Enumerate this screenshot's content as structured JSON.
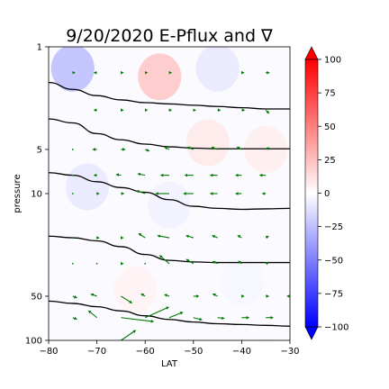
{
  "chart_data": {
    "type": "contour-quiver",
    "title": "9/20/2020 E-Pflux and ∇",
    "xlabel": "LAT",
    "ylabel": "pressure",
    "xlim": [
      -80,
      -30
    ],
    "ylim": [
      100,
      1
    ],
    "y_scale": "log",
    "x_ticks": [
      -80,
      -70,
      -60,
      -50,
      -40,
      -30
    ],
    "x_tick_labels": [
      "−80",
      "−70",
      "−60",
      "−50",
      "−40",
      "−30"
    ],
    "y_ticks": [
      1,
      5,
      10,
      50,
      100
    ],
    "y_tick_labels": [
      "1",
      "5",
      "10",
      "50",
      "100"
    ],
    "colorbar": {
      "colormap": "bwr",
      "range": [
        -100,
        100
      ],
      "ticks": [
        100,
        75,
        50,
        25,
        0,
        -25,
        -50,
        -75,
        -100
      ],
      "tick_labels": [
        "100",
        "75",
        "50",
        "25",
        "0",
        "−25",
        "−50",
        "−75",
        "−100"
      ],
      "extend": "both"
    },
    "shading_blobs": [
      {
        "lat": -75,
        "p": 1.4,
        "value": -30
      },
      {
        "lat": -57,
        "p": 1.6,
        "value": 25
      },
      {
        "lat": -45,
        "p": 1.4,
        "value": -10
      },
      {
        "lat": -47,
        "p": 4.5,
        "value": 10
      },
      {
        "lat": -35,
        "p": 5,
        "value": 8
      },
      {
        "lat": -72,
        "p": 9,
        "value": -10
      },
      {
        "lat": -55,
        "p": 12,
        "value": -6
      },
      {
        "lat": -62,
        "p": 45,
        "value": 5
      },
      {
        "lat": -40,
        "p": 40,
        "value": -4
      }
    ],
    "contour_lines": [
      {
        "points": [
          [
            -80,
            1.75
          ],
          [
            -75,
            1.95
          ],
          [
            -70,
            2.15
          ],
          [
            -65,
            2.3
          ],
          [
            -60,
            2.4
          ],
          [
            -55,
            2.45
          ],
          [
            -50,
            2.5
          ],
          [
            -45,
            2.55
          ],
          [
            -40,
            2.6
          ],
          [
            -35,
            2.65
          ],
          [
            -30,
            2.65
          ]
        ]
      },
      {
        "points": [
          [
            -80,
            3.1
          ],
          [
            -75,
            3.3
          ],
          [
            -70,
            3.9
          ],
          [
            -65,
            4.3
          ],
          [
            -60,
            4.6
          ],
          [
            -55,
            4.8
          ],
          [
            -50,
            4.9
          ],
          [
            -45,
            4.95
          ],
          [
            -40,
            4.95
          ],
          [
            -35,
            4.95
          ],
          [
            -30,
            4.95
          ]
        ]
      },
      {
        "points": [
          [
            -80,
            7.2
          ],
          [
            -75,
            7.5
          ],
          [
            -70,
            8.3
          ],
          [
            -65,
            9.1
          ],
          [
            -60,
            9.8
          ],
          [
            -55,
            11
          ],
          [
            -50,
            12.2
          ],
          [
            -45,
            12.6
          ],
          [
            -40,
            12.8
          ],
          [
            -35,
            12.7
          ],
          [
            -30,
            12.6
          ]
        ]
      },
      {
        "points": [
          [
            -80,
            19.5
          ],
          [
            -75,
            20
          ],
          [
            -70,
            21
          ],
          [
            -65,
            23
          ],
          [
            -60,
            26
          ],
          [
            -55,
            28.5
          ],
          [
            -50,
            29.2
          ],
          [
            -45,
            29.5
          ],
          [
            -40,
            29.5
          ],
          [
            -35,
            29.5
          ],
          [
            -30,
            29.5
          ]
        ]
      },
      {
        "points": [
          [
            -80,
            54
          ],
          [
            -75,
            56
          ],
          [
            -70,
            59
          ],
          [
            -65,
            63
          ],
          [
            -60,
            68
          ],
          [
            -55,
            72
          ],
          [
            -50,
            75
          ],
          [
            -45,
            77
          ],
          [
            -40,
            78
          ],
          [
            -35,
            79
          ],
          [
            -30,
            80
          ]
        ]
      }
    ],
    "quiver": [
      {
        "lat": -75,
        "p": 1.5,
        "u": 0.2,
        "v": 0
      },
      {
        "lat": -70,
        "p": 1.5,
        "u": -0.3,
        "v": 0
      },
      {
        "lat": -65,
        "p": 1.5,
        "u": 0.2,
        "v": 0
      },
      {
        "lat": -60,
        "p": 1.5,
        "u": 0.2,
        "v": 0
      },
      {
        "lat": -55,
        "p": 1.5,
        "u": 0.2,
        "v": 0
      },
      {
        "lat": -40,
        "p": 1.5,
        "u": 0.2,
        "v": 0
      },
      {
        "lat": -35,
        "p": 1.5,
        "u": 0.4,
        "v": 0
      },
      {
        "lat": -30,
        "p": 1.5,
        "u": 0.3,
        "v": 0
      },
      {
        "lat": -70,
        "p": 2.7,
        "u": -0.3,
        "v": 0
      },
      {
        "lat": -65,
        "p": 2.7,
        "u": 0.2,
        "v": 0
      },
      {
        "lat": -60,
        "p": 2.7,
        "u": 0.2,
        "v": 0
      },
      {
        "lat": -55,
        "p": 2.7,
        "u": 0.2,
        "v": 0
      },
      {
        "lat": -50,
        "p": 2.7,
        "u": 0.2,
        "v": 0
      },
      {
        "lat": -45,
        "p": 2.7,
        "u": 0.3,
        "v": 0
      },
      {
        "lat": -40,
        "p": 2.7,
        "u": 0.3,
        "v": 0
      },
      {
        "lat": -35,
        "p": 2.7,
        "u": 0.4,
        "v": -0.4
      },
      {
        "lat": -30,
        "p": 2.7,
        "u": 0.6,
        "v": 0
      },
      {
        "lat": -75,
        "p": 5,
        "u": 0.1,
        "v": 0
      },
      {
        "lat": -70,
        "p": 5,
        "u": -0.5,
        "v": 0
      },
      {
        "lat": -65,
        "p": 5,
        "u": 0.5,
        "v": 0
      },
      {
        "lat": -60,
        "p": 5,
        "u": 0.5,
        "v": -0.2
      },
      {
        "lat": -55,
        "p": 5,
        "u": -0.6,
        "v": 0.3
      },
      {
        "lat": -50,
        "p": 5,
        "u": -0.8,
        "v": 0.3
      },
      {
        "lat": -45,
        "p": 5,
        "u": -0.8,
        "v": 0.3
      },
      {
        "lat": -40,
        "p": 5,
        "u": -0.6,
        "v": 0.3
      },
      {
        "lat": -35,
        "p": 5,
        "u": 0.4,
        "v": 0.2
      },
      {
        "lat": -30,
        "p": 5,
        "u": 1.0,
        "v": 0
      },
      {
        "lat": -75,
        "p": 7.5,
        "u": 0.1,
        "v": 0
      },
      {
        "lat": -70,
        "p": 7.5,
        "u": -0.3,
        "v": 0
      },
      {
        "lat": -65,
        "p": 7.5,
        "u": -0.6,
        "v": 0.1
      },
      {
        "lat": -60,
        "p": 7.5,
        "u": -1.0,
        "v": 0.2
      },
      {
        "lat": -55,
        "p": 7.5,
        "u": -1.2,
        "v": 0
      },
      {
        "lat": -50,
        "p": 7.5,
        "u": -1.2,
        "v": 0
      },
      {
        "lat": -45,
        "p": 7.5,
        "u": -1.0,
        "v": 0
      },
      {
        "lat": -40,
        "p": 7.5,
        "u": -0.8,
        "v": 0
      },
      {
        "lat": -35,
        "p": 7.5,
        "u": -0.8,
        "v": 0
      },
      {
        "lat": -30,
        "p": 7.5,
        "u": 1.0,
        "v": 0
      },
      {
        "lat": -75,
        "p": 10,
        "u": 0.1,
        "v": 0
      },
      {
        "lat": -70,
        "p": 10,
        "u": 0.2,
        "v": 0
      },
      {
        "lat": -65,
        "p": 10,
        "u": 0.3,
        "v": 0
      },
      {
        "lat": -60,
        "p": 10,
        "u": -1.2,
        "v": 0.4
      },
      {
        "lat": -55,
        "p": 10,
        "u": -2.0,
        "v": 0
      },
      {
        "lat": -50,
        "p": 10,
        "u": -1.4,
        "v": 0
      },
      {
        "lat": -45,
        "p": 10,
        "u": -1.0,
        "v": 0
      },
      {
        "lat": -40,
        "p": 10,
        "u": -0.8,
        "v": 0
      },
      {
        "lat": -35,
        "p": 10,
        "u": -0.4,
        "v": 0
      },
      {
        "lat": -30,
        "p": 10,
        "u": 1.0,
        "v": 0
      },
      {
        "lat": -75,
        "p": 20,
        "u": 0.1,
        "v": 0
      },
      {
        "lat": -70,
        "p": 20,
        "u": 0.2,
        "v": 0
      },
      {
        "lat": -65,
        "p": 20,
        "u": 0.2,
        "v": 0
      },
      {
        "lat": -60,
        "p": 20,
        "u": -0.9,
        "v": 0.6
      },
      {
        "lat": -55,
        "p": 20,
        "u": -1.7,
        "v": 0.3
      },
      {
        "lat": -50,
        "p": 20,
        "u": -1.0,
        "v": 0.3
      },
      {
        "lat": -45,
        "p": 20,
        "u": -0.7,
        "v": 0.3
      },
      {
        "lat": -40,
        "p": 20,
        "u": -0.5,
        "v": 0.3
      },
      {
        "lat": -35,
        "p": 20,
        "u": 0.3,
        "v": 0.2
      },
      {
        "lat": -30,
        "p": 20,
        "u": 0.6,
        "v": 0
      },
      {
        "lat": -75,
        "p": 30,
        "u": 0.1,
        "v": 0
      },
      {
        "lat": -70,
        "p": 30,
        "u": 0.1,
        "v": 0
      },
      {
        "lat": -65,
        "p": 30,
        "u": 0.2,
        "v": 0
      },
      {
        "lat": -60,
        "p": 30,
        "u": 0.1,
        "v": 0
      },
      {
        "lat": -55,
        "p": 30,
        "u": -1.4,
        "v": 1.2
      },
      {
        "lat": -50,
        "p": 30,
        "u": -1.0,
        "v": 0.6
      },
      {
        "lat": -45,
        "p": 30,
        "u": -0.6,
        "v": 0.3
      },
      {
        "lat": -40,
        "p": 30,
        "u": -0.4,
        "v": 0.3
      },
      {
        "lat": -35,
        "p": 30,
        "u": 0.3,
        "v": 0.1
      },
      {
        "lat": -30,
        "p": 30,
        "u": 0.6,
        "v": 0
      },
      {
        "lat": -75,
        "p": 50,
        "u": 0.5,
        "v": -0.2
      },
      {
        "lat": -70,
        "p": 50,
        "u": -0.8,
        "v": 0.3
      },
      {
        "lat": -65,
        "p": 50,
        "u": 1.6,
        "v": -1.0
      },
      {
        "lat": -60,
        "p": 50,
        "u": -0.5,
        "v": 0.3
      },
      {
        "lat": -55,
        "p": 50,
        "u": -0.6,
        "v": 0.2
      },
      {
        "lat": -50,
        "p": 50,
        "u": 0.7,
        "v": 0
      },
      {
        "lat": -45,
        "p": 50,
        "u": -0.6,
        "v": 0.3
      },
      {
        "lat": -40,
        "p": 50,
        "u": 0.2,
        "v": 0
      },
      {
        "lat": -35,
        "p": 50,
        "u": 0.3,
        "v": 0
      },
      {
        "lat": -30,
        "p": 50,
        "u": -0.3,
        "v": 0
      },
      {
        "lat": -75,
        "p": 70,
        "u": 0.5,
        "v": -0.2
      },
      {
        "lat": -70,
        "p": 70,
        "u": -1.2,
        "v": 1.0
      },
      {
        "lat": -65,
        "p": 70,
        "u": 5.0,
        "v": -0.6
      },
      {
        "lat": -60,
        "p": 70,
        "u": 3.6,
        "v": 1.6
      },
      {
        "lat": -55,
        "p": 70,
        "u": 2.0,
        "v": 0.8
      },
      {
        "lat": -50,
        "p": 70,
        "u": 1.2,
        "v": -0.3
      },
      {
        "lat": -45,
        "p": 70,
        "u": 0.9,
        "v": -0.1
      },
      {
        "lat": -40,
        "p": 70,
        "u": 1.0,
        "v": 0
      },
      {
        "lat": -35,
        "p": 70,
        "u": 1.0,
        "v": 0
      },
      {
        "lat": -30,
        "p": 70,
        "u": 1.2,
        "v": 0
      },
      {
        "lat": -65,
        "p": 100,
        "u": 2.2,
        "v": 1.5
      },
      {
        "lat": -60,
        "p": 100,
        "u": 2.3,
        "v": -0.5
      },
      {
        "lat": -50,
        "p": 100,
        "u": 3.0,
        "v": -1.0
      },
      {
        "lat": -40,
        "p": 100,
        "u": 2.5,
        "v": -1.2
      },
      {
        "lat": -35,
        "p": 100,
        "u": 3.5,
        "v": -0.5
      }
    ],
    "colors": {
      "arrow": "#007a00",
      "contour": "#000000",
      "pos_max": "#ff0000",
      "neg_max": "#0000ff",
      "zero": "#ffffff"
    },
    "grid": false
  }
}
